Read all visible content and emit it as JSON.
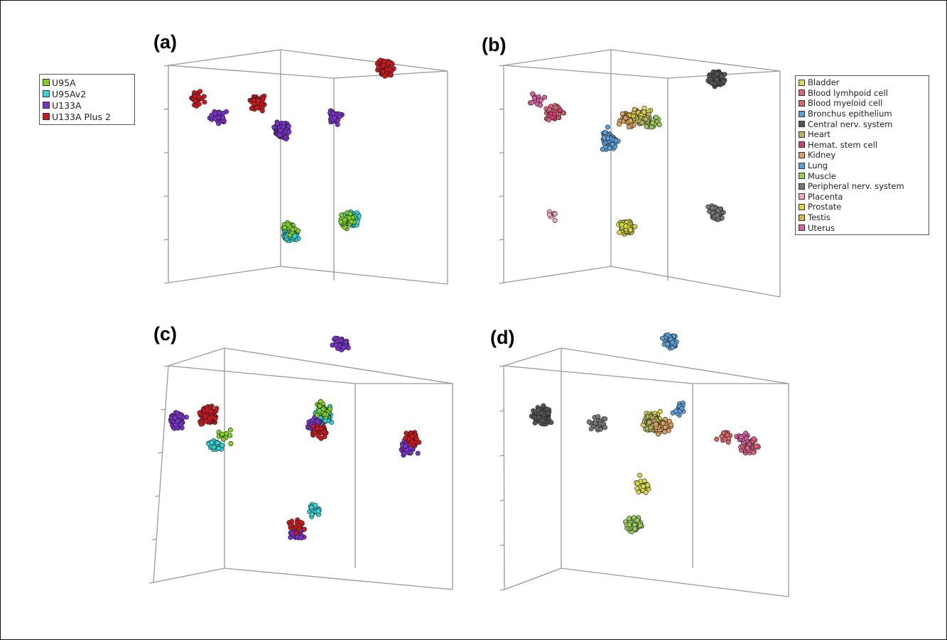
{
  "figure": {
    "panel_labels": [
      "(a)",
      "(b)",
      "(c)",
      "(d)"
    ]
  },
  "platform_legend": [
    {
      "label": "U95A",
      "color": "#7ed321"
    },
    {
      "label": "U95Av2",
      "color": "#2fd8d8"
    },
    {
      "label": "U133A",
      "color": "#7a2fd0"
    },
    {
      "label": "U133A Plus 2",
      "color": "#d0161b"
    }
  ],
  "tissue_legend": [
    {
      "label": "Bladder",
      "color": "#d9d94c"
    },
    {
      "label": "Blood lymhpoid cell",
      "color": "#e0637e"
    },
    {
      "label": "Blood myeloid cell",
      "color": "#d96666"
    },
    {
      "label": "Bronchus epithelium",
      "color": "#5aa0d8"
    },
    {
      "label": "Central nerv. system",
      "color": "#555555"
    },
    {
      "label": "Heart",
      "color": "#b5b55a"
    },
    {
      "label": "Hemat. stem cell",
      "color": "#d63878"
    },
    {
      "label": "Kidney",
      "color": "#d9a060"
    },
    {
      "label": "Lung",
      "color": "#5b9ed9"
    },
    {
      "label": "Muscle",
      "color": "#9acc5a"
    },
    {
      "label": "Peripheral nerv. system",
      "color": "#777777"
    },
    {
      "label": "Placenta",
      "color": "#f2a8b8"
    },
    {
      "label": "Prostate",
      "color": "#d9d93a"
    },
    {
      "label": "Testis",
      "color": "#d9b84a"
    },
    {
      "label": "Uterus",
      "color": "#d660a0"
    }
  ],
  "chart_data": [
    {
      "type": "scatter",
      "panel": "(a)",
      "colored_by": "platform",
      "clusters": [
        {
          "series": "U133A Plus 2",
          "x": 0.53,
          "y": 0.72,
          "count": 120
        },
        {
          "series": "U133A Plus 2",
          "x": -0.62,
          "y": 0.52,
          "count": 22
        },
        {
          "series": "U133A Plus 2",
          "x": -0.25,
          "y": 0.48,
          "count": 55
        },
        {
          "series": "U133A",
          "x": 0.22,
          "y": 0.38,
          "count": 40
        },
        {
          "series": "U133A",
          "x": -0.49,
          "y": 0.38,
          "count": 40
        },
        {
          "series": "U133A",
          "x": -0.1,
          "y": 0.28,
          "count": 170
        },
        {
          "series": "U95Av2",
          "x": -0.05,
          "y": -0.45,
          "count": 110
        },
        {
          "series": "U95Av2",
          "x": 0.33,
          "y": -0.35,
          "count": 55
        },
        {
          "series": "U95A",
          "x": -0.05,
          "y": -0.4,
          "count": 25
        },
        {
          "series": "U95A",
          "x": 0.3,
          "y": -0.35,
          "count": 25
        }
      ]
    },
    {
      "type": "scatter",
      "panel": "(b)",
      "colored_by": "tissue",
      "clusters": [
        {
          "series": "Central nerv. system",
          "x": 0.45,
          "y": 0.65,
          "count": 140
        },
        {
          "series": "Peripheral nerv. system",
          "x": 0.45,
          "y": -0.3,
          "count": 70
        },
        {
          "series": "Blood lymhpoid cell",
          "x": -0.55,
          "y": 0.4,
          "count": 50
        },
        {
          "series": "Blood myeloid cell",
          "x": -0.52,
          "y": 0.42,
          "count": 18
        },
        {
          "series": "Uterus",
          "x": -0.65,
          "y": 0.5,
          "count": 14
        },
        {
          "series": "Bronchus epithelium",
          "x": -0.2,
          "y": 0.2,
          "count": 45
        },
        {
          "series": "Lung",
          "x": -0.22,
          "y": 0.25,
          "count": 20
        },
        {
          "series": "Kidney",
          "x": -0.1,
          "y": 0.35,
          "count": 30
        },
        {
          "series": "Testis",
          "x": -0.05,
          "y": 0.38,
          "count": 25
        },
        {
          "series": "Bladder",
          "x": 0.0,
          "y": 0.4,
          "count": 25
        },
        {
          "series": "Muscle",
          "x": 0.05,
          "y": 0.35,
          "count": 20
        },
        {
          "series": "Heart",
          "x": 0.0,
          "y": 0.37,
          "count": 15
        },
        {
          "series": "Prostate",
          "x": -0.1,
          "y": -0.4,
          "count": 90
        },
        {
          "series": "Placenta",
          "x": -0.55,
          "y": -0.32,
          "count": 8
        },
        {
          "series": "Hemat. stem cell",
          "x": -0.55,
          "y": 0.38,
          "count": 8
        }
      ]
    },
    {
      "type": "scatter",
      "panel": "(c)",
      "colored_by": "platform",
      "clusters": [
        {
          "series": "U133A Plus 2",
          "x": -0.55,
          "y": 0.25,
          "count": 150
        },
        {
          "series": "U133A",
          "x": -0.72,
          "y": 0.22,
          "count": 60
        },
        {
          "series": "U95Av2",
          "x": -0.5,
          "y": 0.05,
          "count": 25
        },
        {
          "series": "U95A",
          "x": -0.45,
          "y": 0.12,
          "count": 10
        },
        {
          "series": "U133A",
          "x": 0.2,
          "y": 0.7,
          "count": 35
        },
        {
          "series": "U95Av2",
          "x": 0.1,
          "y": 0.25,
          "count": 130
        },
        {
          "series": "U133A",
          "x": 0.05,
          "y": 0.2,
          "count": 45
        },
        {
          "series": "U133A Plus 2",
          "x": 0.08,
          "y": 0.15,
          "count": 30
        },
        {
          "series": "U95A",
          "x": 0.1,
          "y": 0.28,
          "count": 25
        },
        {
          "series": "U133A",
          "x": 0.58,
          "y": 0.05,
          "count": 50
        },
        {
          "series": "U133A Plus 2",
          "x": 0.6,
          "y": 0.1,
          "count": 35
        },
        {
          "series": "U133A",
          "x": -0.05,
          "y": -0.5,
          "count": 30
        },
        {
          "series": "U133A Plus 2",
          "x": -0.05,
          "y": -0.45,
          "count": 20
        },
        {
          "series": "U95Av2",
          "x": 0.05,
          "y": -0.35,
          "count": 20
        }
      ]
    },
    {
      "type": "scatter",
      "panel": "(d)",
      "colored_by": "tissue",
      "clusters": [
        {
          "series": "Central nerv. system",
          "x": -0.55,
          "y": 0.25,
          "count": 180
        },
        {
          "series": "Peripheral nerv. system",
          "x": -0.25,
          "y": 0.2,
          "count": 25
        },
        {
          "series": "Bronchus epithelium",
          "x": 0.15,
          "y": 0.72,
          "count": 40
        },
        {
          "series": "Prostate",
          "x": 0.05,
          "y": 0.22,
          "count": 80
        },
        {
          "series": "Heart",
          "x": 0.05,
          "y": 0.2,
          "count": 60
        },
        {
          "series": "Kidney",
          "x": 0.1,
          "y": 0.18,
          "count": 35
        },
        {
          "series": "Lung",
          "x": 0.2,
          "y": 0.28,
          "count": 15
        },
        {
          "series": "Blood lymhpoid cell",
          "x": 0.58,
          "y": 0.05,
          "count": 70
        },
        {
          "series": "Uterus",
          "x": 0.55,
          "y": 0.1,
          "count": 20
        },
        {
          "series": "Blood myeloid cell",
          "x": 0.45,
          "y": 0.12,
          "count": 15
        },
        {
          "series": "Muscle",
          "x": -0.05,
          "y": -0.45,
          "count": 70
        },
        {
          "series": "Bladder",
          "x": 0.0,
          "y": -0.2,
          "count": 25
        }
      ]
    }
  ]
}
